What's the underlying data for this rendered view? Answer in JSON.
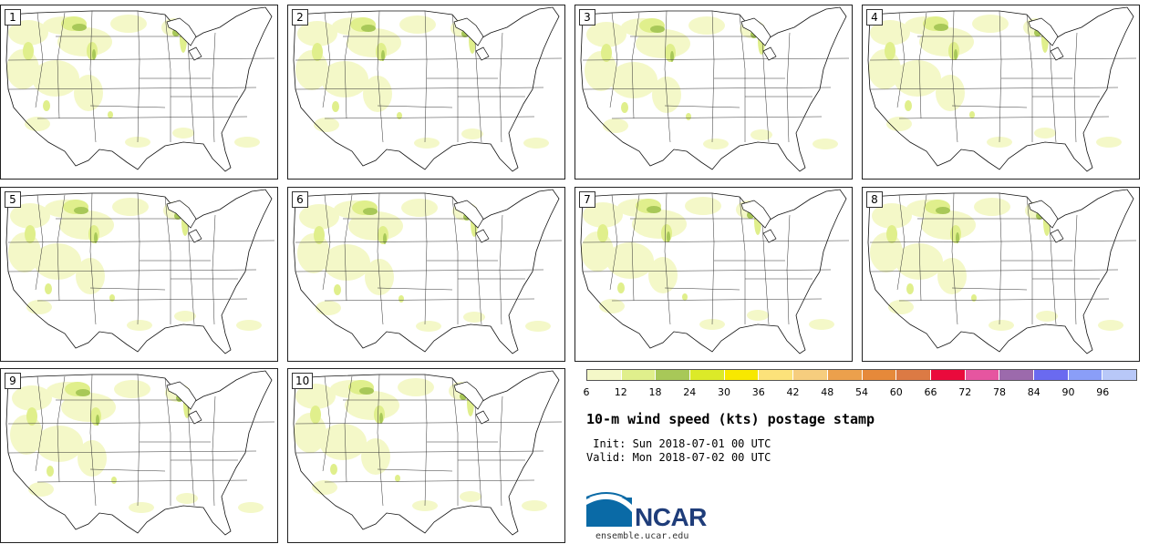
{
  "panels": [
    {
      "label": "1"
    },
    {
      "label": "2"
    },
    {
      "label": "3"
    },
    {
      "label": "4"
    },
    {
      "label": "5"
    },
    {
      "label": "6"
    },
    {
      "label": "7"
    },
    {
      "label": "8"
    },
    {
      "label": "9"
    },
    {
      "label": "10"
    }
  ],
  "colorbar": {
    "ticks": [
      "6",
      "12",
      "18",
      "24",
      "30",
      "36",
      "42",
      "48",
      "54",
      "60",
      "66",
      "72",
      "78",
      "84",
      "90",
      "96"
    ],
    "colors": [
      "#f4f8c8",
      "#e0ef8c",
      "#a8c858",
      "#dcea28",
      "#f8e800",
      "#fce27a",
      "#f6cd7e",
      "#eca04c",
      "#e6893a",
      "#dc7a44",
      "#ea0a3c",
      "#e655a0",
      "#9c6aac",
      "#6a6af0",
      "#8a9ef8",
      "#b8c8f8"
    ],
    "map_fill_light": "#f4f8c8",
    "map_fill_mid": "#e0ef8c",
    "map_fill_dark": "#a8c858"
  },
  "title": "10-m wind speed (kts) postage stamp",
  "init_line": " Init: Sun 2018-07-01 00 UTC",
  "valid_line": "Valid: Mon 2018-07-02 00 UTC",
  "logo_text": "NCAR",
  "site": "ensemble.ucar.edu"
}
